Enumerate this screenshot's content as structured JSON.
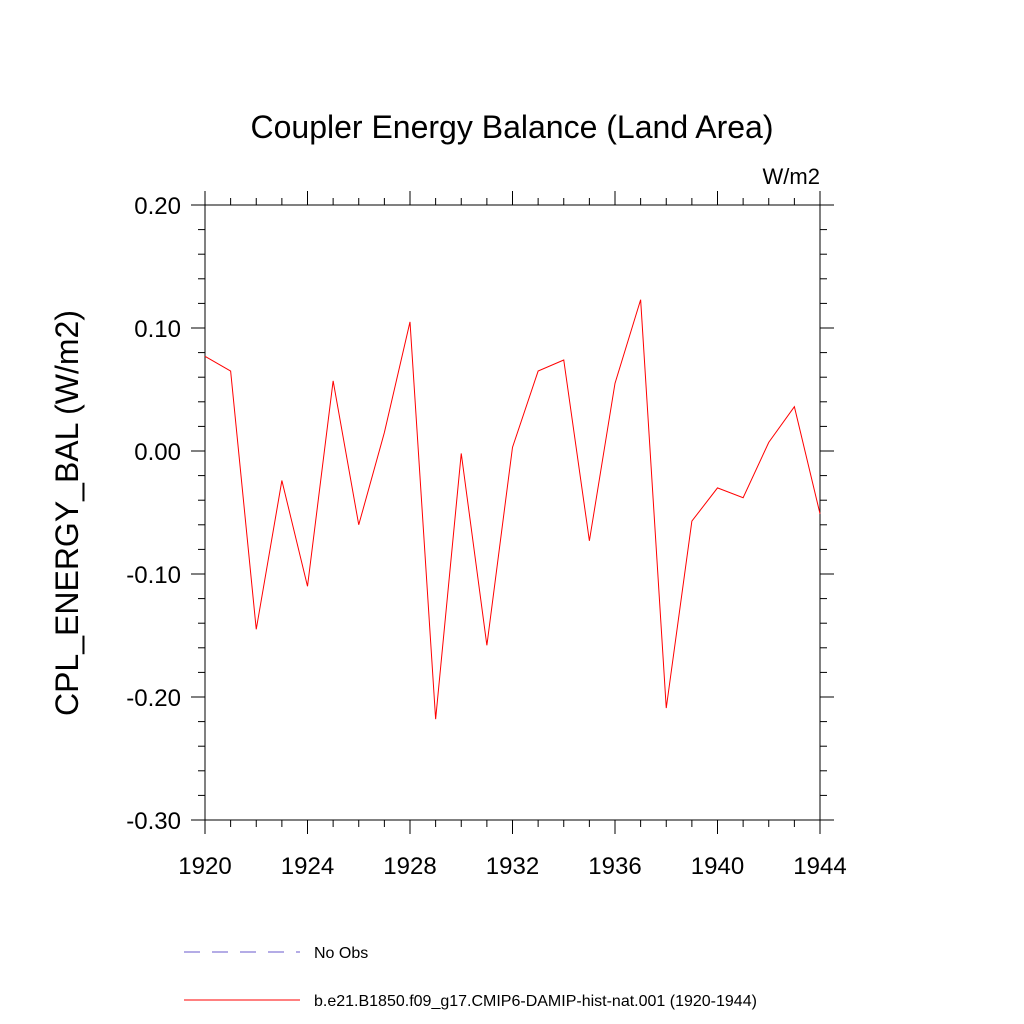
{
  "chart_data": {
    "type": "line",
    "title": "Coupler Energy Balance (Land Area)",
    "units_label": "W/m2",
    "ylabel": "CPL_ENERGY_BAL  (W/m2)",
    "xlabel": "",
    "xlim": [
      1920,
      1944
    ],
    "ylim": [
      -0.3,
      0.2
    ],
    "x_ticks": [
      1920,
      1924,
      1928,
      1932,
      1936,
      1940,
      1944
    ],
    "x_tick_labels": [
      "1920",
      "1924",
      "1928",
      "1932",
      "1936",
      "1940",
      "1944"
    ],
    "y_ticks": [
      0.2,
      0.1,
      0.0,
      -0.1,
      -0.2,
      -0.3
    ],
    "y_tick_labels": [
      "0.20",
      "0.10",
      "0.00",
      "-0.10",
      "-0.20",
      "-0.30"
    ],
    "grid": false,
    "legend_position": "bottom",
    "series": [
      {
        "name": "No Obs",
        "color": "#6a5acd",
        "style": "dashed",
        "x": [],
        "values": []
      },
      {
        "name": "b.e21.B1850.f09_g17.CMIP6-DAMIP-hist-nat.001 (1920-1944)",
        "color": "#ff0000",
        "style": "solid",
        "x": [
          1920,
          1921,
          1922,
          1923,
          1924,
          1925,
          1926,
          1927,
          1928,
          1929,
          1930,
          1931,
          1932,
          1933,
          1934,
          1935,
          1936,
          1937,
          1938,
          1939,
          1940,
          1941,
          1942,
          1943,
          1944
        ],
        "values": [
          0.077,
          0.065,
          -0.145,
          -0.024,
          -0.11,
          0.057,
          -0.06,
          0.015,
          0.105,
          -0.218,
          -0.002,
          -0.158,
          0.003,
          0.065,
          0.074,
          -0.073,
          0.055,
          0.123,
          -0.209,
          -0.057,
          -0.03,
          -0.038,
          0.007,
          0.036,
          -0.051
        ]
      }
    ]
  }
}
